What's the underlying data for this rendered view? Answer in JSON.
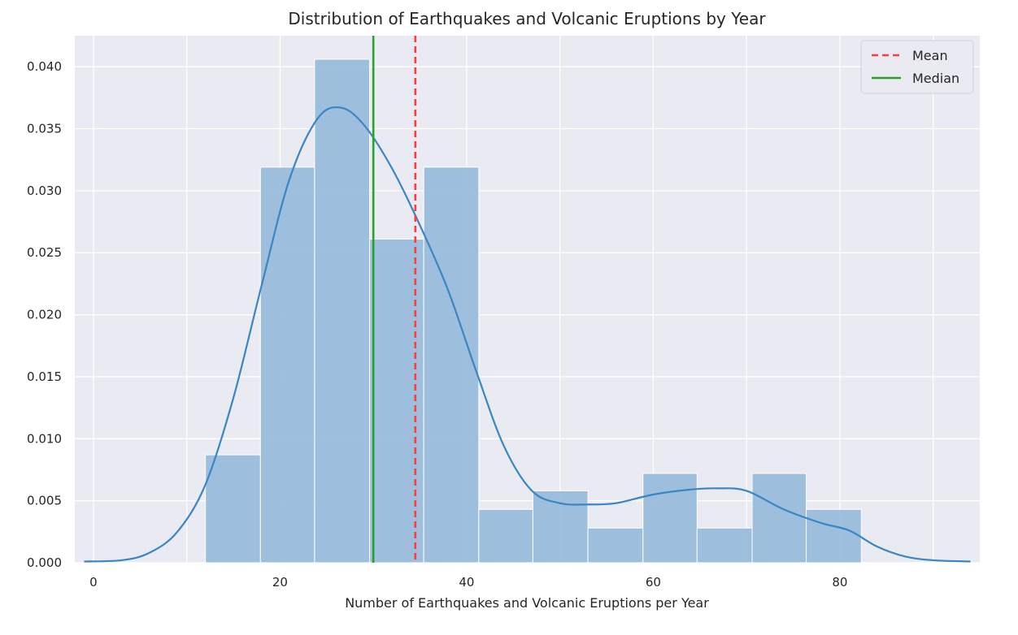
{
  "chart_data": {
    "type": "histogram",
    "title": "Distribution of Earthquakes and Volcanic Eruptions by Year",
    "xlabel": "Number of Earthquakes and Volcanic Eruptions per Year",
    "ylabel": "",
    "xlim": [
      -2,
      95
    ],
    "ylim": [
      0,
      0.0425
    ],
    "grid": true,
    "x_ticks": [
      0,
      20,
      40,
      60,
      80
    ],
    "x_tick_labels": [
      "0",
      "20",
      "40",
      "60",
      "80"
    ],
    "y_ticks": [
      0,
      0.005,
      0.01,
      0.015,
      0.02,
      0.025,
      0.03,
      0.035,
      0.04
    ],
    "y_tick_labels": [
      "0.000",
      "0.005",
      "0.010",
      "0.015",
      "0.020",
      "0.025",
      "0.030",
      "0.035",
      "0.040"
    ],
    "bins": [
      {
        "x0": 12.0,
        "x1": 17.9,
        "density": 0.0087
      },
      {
        "x0": 17.9,
        "x1": 23.7,
        "density": 0.0319
      },
      {
        "x0": 23.7,
        "x1": 29.6,
        "density": 0.0406
      },
      {
        "x0": 29.6,
        "x1": 35.4,
        "density": 0.0261
      },
      {
        "x0": 35.4,
        "x1": 41.3,
        "density": 0.0319
      },
      {
        "x0": 41.3,
        "x1": 47.1,
        "density": 0.0043
      },
      {
        "x0": 47.1,
        "x1": 53.0,
        "density": 0.0058
      },
      {
        "x0": 53.0,
        "x1": 58.9,
        "density": 0.0028
      },
      {
        "x0": 58.9,
        "x1": 64.7,
        "density": 0.0072
      },
      {
        "x0": 64.7,
        "x1": 70.6,
        "density": 0.0028
      },
      {
        "x0": 70.6,
        "x1": 76.4,
        "density": 0.0072
      },
      {
        "x0": 76.4,
        "x1": 82.3,
        "density": 0.0043
      }
    ],
    "kde": {
      "x": [
        -1,
        3,
        6,
        9,
        12,
        15,
        18,
        21,
        24,
        26.5,
        29,
        32,
        35,
        38,
        41,
        44,
        47,
        50,
        53,
        56,
        60,
        64,
        67,
        70,
        74,
        78,
        81,
        84,
        87,
        90,
        94
      ],
      "y": [
        0.0001,
        0.0002,
        0.0008,
        0.0025,
        0.0063,
        0.0133,
        0.0223,
        0.0309,
        0.0358,
        0.0367,
        0.0353,
        0.0318,
        0.0272,
        0.022,
        0.0155,
        0.0094,
        0.0058,
        0.0048,
        0.0047,
        0.0048,
        0.0055,
        0.0059,
        0.006,
        0.0058,
        0.0043,
        0.0032,
        0.0026,
        0.0013,
        0.0005,
        0.0002,
        0.0001
      ]
    },
    "mean": 34.5,
    "median": 30.0,
    "legend": {
      "placement": "top-right",
      "entries": [
        {
          "label": "Mean",
          "style": "dashed",
          "color": "#ff3b3b"
        },
        {
          "label": "Median",
          "style": "solid",
          "color": "#2ca02c"
        }
      ]
    },
    "colors": {
      "bar": "#8fb6d8",
      "kde": "#3a86c2",
      "mean": "#ff3b3b",
      "median": "#2ca02c",
      "plot_background": "#eaeaf2",
      "grid": "#ffffff"
    }
  }
}
